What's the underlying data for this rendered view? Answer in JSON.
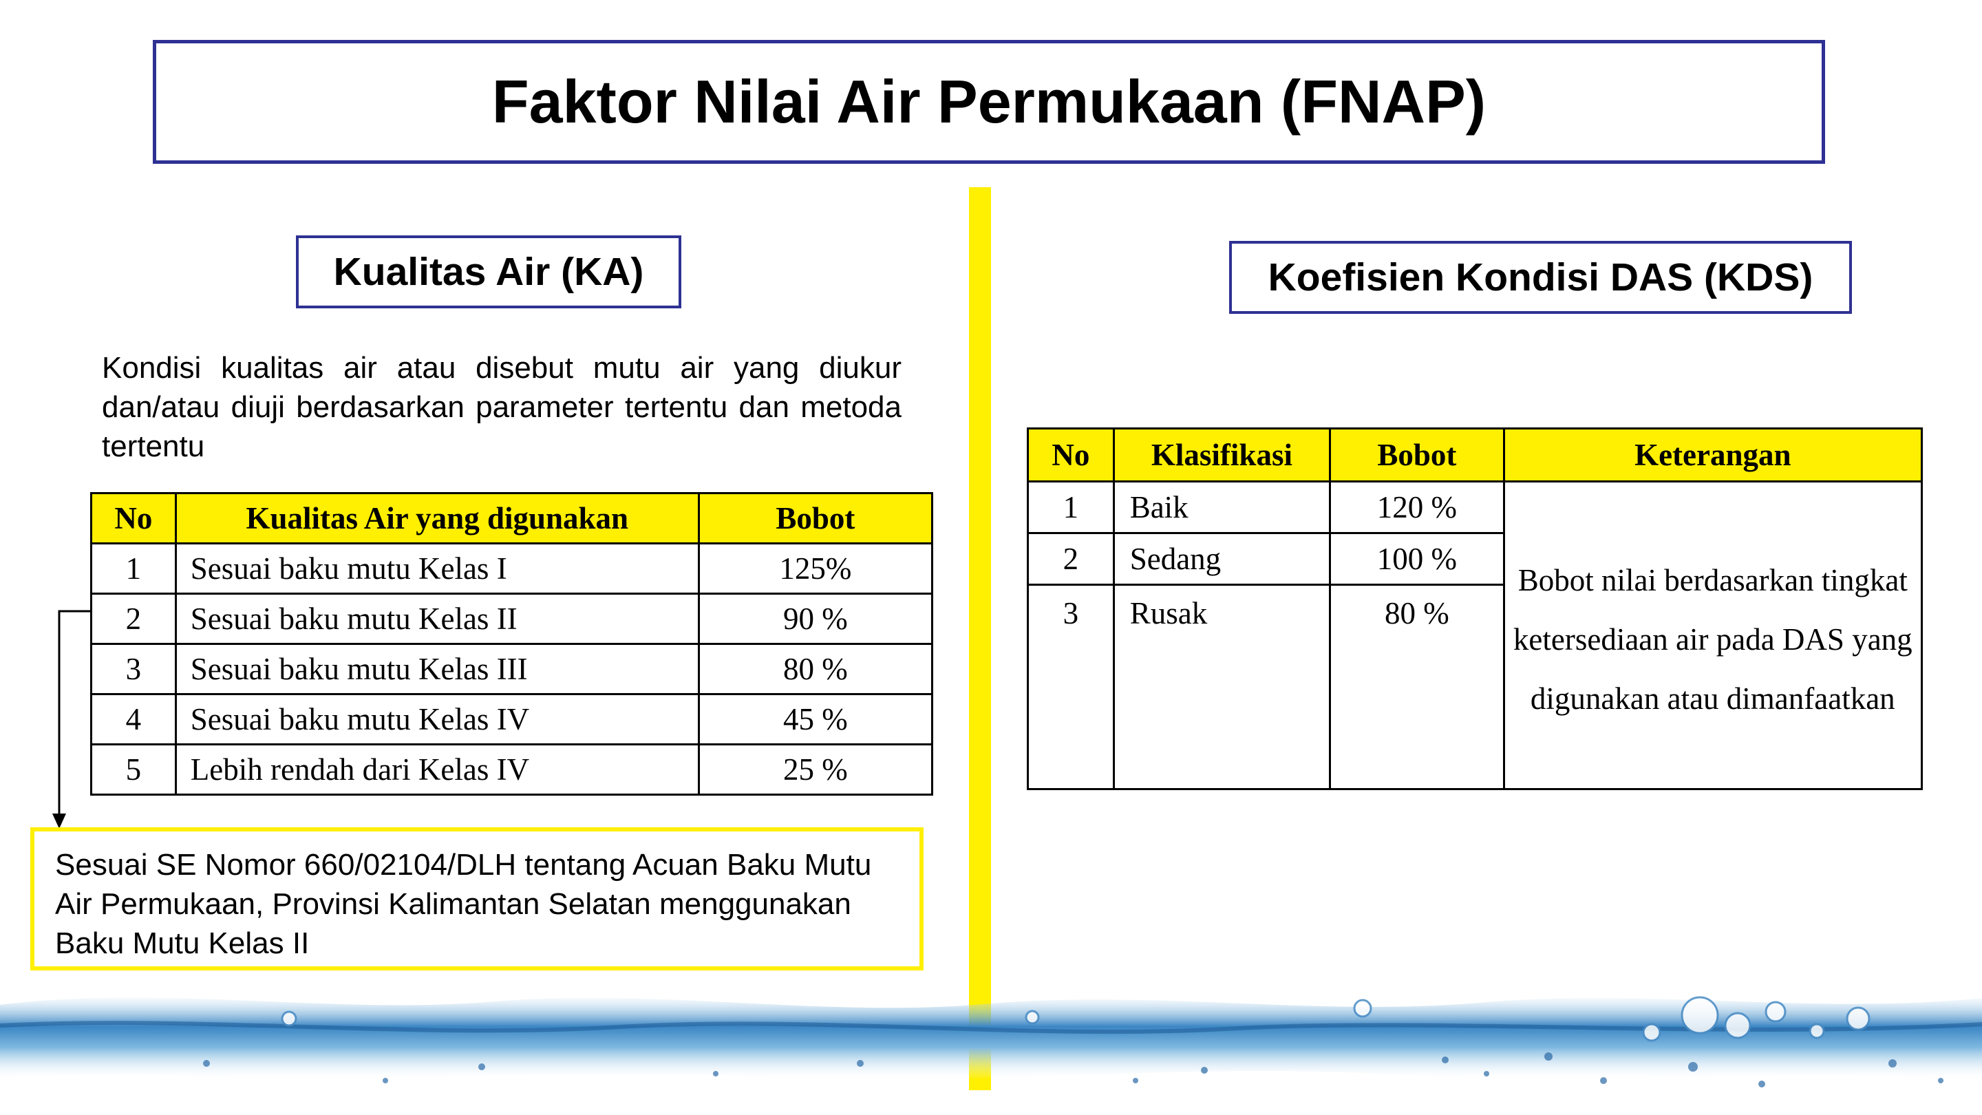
{
  "title": "Faktor Nilai Air Permukaan (FNAP)",
  "colors": {
    "frame_blue": "#2e3192",
    "accent_yellow": "#ffef00"
  },
  "ka": {
    "heading": "Kualitas Air (KA)",
    "description": "Kondisi kualitas air atau disebut mutu air yang diukur dan/atau diuji berdasarkan parameter tertentu dan metoda tertentu",
    "table": {
      "headers": [
        "No",
        "Kualitas Air yang digunakan",
        "Bobot"
      ],
      "rows": [
        [
          "1",
          "Sesuai baku mutu Kelas I",
          "125%"
        ],
        [
          "2",
          "Sesuai baku mutu Kelas II",
          "90 %"
        ],
        [
          "3",
          "Sesuai baku mutu Kelas III",
          "80 %"
        ],
        [
          "4",
          "Sesuai baku mutu Kelas IV",
          "45 %"
        ],
        [
          "5",
          "Lebih rendah dari Kelas IV",
          "25 %"
        ]
      ]
    },
    "note": "Sesuai SE Nomor 660/02104/DLH tentang Acuan Baku Mutu Air Permukaan, Provinsi Kalimantan Selatan menggunakan Baku Mutu Kelas II"
  },
  "kds": {
    "heading": "Koefisien Kondisi DAS (KDS)",
    "table": {
      "headers": [
        "No",
        "Klasifikasi",
        "Bobot",
        "Keterangan"
      ],
      "rows": [
        [
          "1",
          "Baik",
          "120 %"
        ],
        [
          "2",
          "Sedang",
          "100 %"
        ],
        [
          "3",
          "Rusak",
          "80 %"
        ]
      ],
      "keterangan": "Bobot nilai berdasarkan tingkat ketersediaan air pada DAS yang  digunakan atau dimanfaatkan"
    }
  }
}
